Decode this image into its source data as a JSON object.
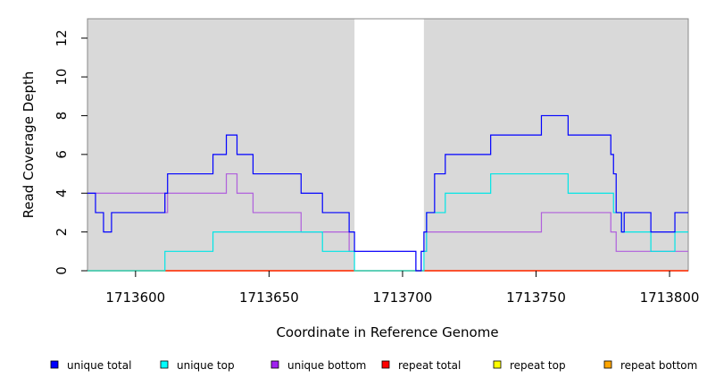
{
  "chart_data": {
    "type": "line",
    "step": true,
    "xlabel": "Coordinate in Reference Genome",
    "ylabel": "Read Coverage Depth",
    "xlim": [
      1713582,
      1713807
    ],
    "ylim": [
      0,
      13
    ],
    "x_ticks": [
      1713600,
      1713650,
      1713700,
      1713750,
      1713800
    ],
    "y_ticks": [
      0,
      2,
      4,
      6,
      8,
      10,
      12
    ],
    "shaded_regions": [
      {
        "x": [
          1713582,
          1713682
        ],
        "color": "#d9d9d9"
      },
      {
        "x": [
          1713708,
          1713807
        ],
        "color": "#d9d9d9"
      }
    ],
    "series": [
      {
        "name": "unique total",
        "color": "#0000ff",
        "points": [
          [
            1713582,
            4
          ],
          [
            1713585,
            4
          ],
          [
            1713585,
            3
          ],
          [
            1713588,
            3
          ],
          [
            1713588,
            2
          ],
          [
            1713591,
            2
          ],
          [
            1713591,
            3
          ],
          [
            1713593,
            3
          ],
          [
            1713611,
            3
          ],
          [
            1713611,
            4
          ],
          [
            1713612,
            4
          ],
          [
            1713612,
            5
          ],
          [
            1713629,
            5
          ],
          [
            1713629,
            6
          ],
          [
            1713634,
            6
          ],
          [
            1713634,
            7
          ],
          [
            1713638,
            7
          ],
          [
            1713638,
            6
          ],
          [
            1713644,
            6
          ],
          [
            1713644,
            5
          ],
          [
            1713662,
            5
          ],
          [
            1713662,
            4
          ],
          [
            1713670,
            4
          ],
          [
            1713670,
            3
          ],
          [
            1713680,
            3
          ],
          [
            1713680,
            2
          ],
          [
            1713682,
            2
          ],
          [
            1713682,
            1
          ],
          [
            1713705,
            1
          ],
          [
            1713705,
            0
          ],
          [
            1713707,
            0
          ],
          [
            1713707,
            1
          ],
          [
            1713708,
            1
          ],
          [
            1713708,
            2
          ],
          [
            1713709,
            2
          ],
          [
            1713709,
            3
          ],
          [
            1713712,
            3
          ],
          [
            1713712,
            5
          ],
          [
            1713716,
            5
          ],
          [
            1713716,
            6
          ],
          [
            1713733,
            6
          ],
          [
            1713733,
            7
          ],
          [
            1713752,
            7
          ],
          [
            1713752,
            8
          ],
          [
            1713762,
            8
          ],
          [
            1713762,
            7
          ],
          [
            1713778,
            7
          ],
          [
            1713778,
            6
          ],
          [
            1713779,
            6
          ],
          [
            1713779,
            5
          ],
          [
            1713780,
            5
          ],
          [
            1713780,
            3
          ],
          [
            1713782,
            3
          ],
          [
            1713782,
            2
          ],
          [
            1713783,
            2
          ],
          [
            1713783,
            3
          ],
          [
            1713793,
            3
          ],
          [
            1713793,
            2
          ],
          [
            1713802,
            2
          ],
          [
            1713802,
            3
          ],
          [
            1713807,
            3
          ]
        ]
      },
      {
        "name": "unique top",
        "color": "#00e5e5",
        "points": [
          [
            1713582,
            0
          ],
          [
            1713611,
            0
          ],
          [
            1713611,
            1
          ],
          [
            1713629,
            1
          ],
          [
            1713629,
            2
          ],
          [
            1713670,
            2
          ],
          [
            1713670,
            1
          ],
          [
            1713682,
            1
          ],
          [
            1713682,
            0
          ],
          [
            1713708,
            0
          ],
          [
            1713708,
            1
          ],
          [
            1713709,
            1
          ],
          [
            1713709,
            3
          ],
          [
            1713716,
            3
          ],
          [
            1713716,
            4
          ],
          [
            1713733,
            4
          ],
          [
            1713733,
            5
          ],
          [
            1713762,
            5
          ],
          [
            1713762,
            4
          ],
          [
            1713779,
            4
          ],
          [
            1713779,
            3
          ],
          [
            1713782,
            3
          ],
          [
            1713782,
            2
          ],
          [
            1713793,
            2
          ],
          [
            1713793,
            1
          ],
          [
            1713802,
            1
          ],
          [
            1713802,
            2
          ],
          [
            1713807,
            2
          ]
        ]
      },
      {
        "name": "unique bottom",
        "color": "#b05fdc",
        "points": [
          [
            1713582,
            4
          ],
          [
            1713611,
            4
          ],
          [
            1713611,
            3
          ],
          [
            1713612,
            3
          ],
          [
            1713612,
            4
          ],
          [
            1713634,
            4
          ],
          [
            1713634,
            5
          ],
          [
            1713638,
            5
          ],
          [
            1713638,
            4
          ],
          [
            1713644,
            4
          ],
          [
            1713644,
            3
          ],
          [
            1713662,
            3
          ],
          [
            1713662,
            2
          ],
          [
            1713680,
            2
          ],
          [
            1713680,
            1
          ],
          [
            1713705,
            1
          ],
          [
            1713705,
            0
          ],
          [
            1713707,
            0
          ],
          [
            1713707,
            1
          ],
          [
            1713709,
            1
          ],
          [
            1713709,
            2
          ],
          [
            1713752,
            2
          ],
          [
            1713752,
            3
          ],
          [
            1713778,
            3
          ],
          [
            1713778,
            2
          ],
          [
            1713780,
            2
          ],
          [
            1713780,
            1
          ],
          [
            1713807,
            1
          ]
        ]
      },
      {
        "name": "repeat total",
        "color": "#ff0000",
        "points": [
          [
            1713582,
            0
          ],
          [
            1713807,
            0
          ]
        ]
      },
      {
        "name": "repeat top",
        "color": "#ffff00",
        "points": [
          [
            1713582,
            0
          ],
          [
            1713807,
            0
          ]
        ]
      },
      {
        "name": "repeat bottom",
        "color": "#ff8c00",
        "points": [
          [
            1713582,
            0
          ],
          [
            1713807,
            0
          ]
        ]
      }
    ],
    "legend": {
      "placement": "bottom",
      "items": [
        {
          "label": "unique total",
          "color": "#0000ff"
        },
        {
          "label": "unique top",
          "color": "#00ffff"
        },
        {
          "label": "unique bottom",
          "color": "#a020f0"
        },
        {
          "label": "repeat total",
          "color": "#ff0000"
        },
        {
          "label": "repeat top",
          "color": "#ffff00"
        },
        {
          "label": "repeat bottom",
          "color": "#ffa500"
        }
      ]
    }
  }
}
